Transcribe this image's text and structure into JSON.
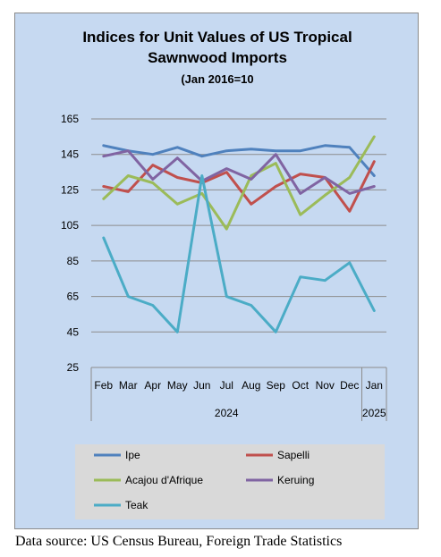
{
  "chart_data": {
    "type": "line",
    "title_line1": "Indices for Unit Values of US Tropical",
    "title_line2": "Sawnwood Imports",
    "subtitle": "(Jan 2016=10",
    "categories": [
      "Feb",
      "Mar",
      "Apr",
      "May",
      "Jun",
      "Jul",
      "Aug",
      "Sep",
      "Oct",
      "Nov",
      "Dec",
      "Jan"
    ],
    "year_labels": [
      "2024",
      "2025"
    ],
    "ylim": [
      25,
      165
    ],
    "yticks": [
      25,
      45,
      65,
      85,
      105,
      125,
      145,
      165
    ],
    "grid": true,
    "legend_position": "bottom",
    "series": [
      {
        "name": "Ipe",
        "color": "#4f81bd",
        "values": [
          150,
          147,
          145,
          149,
          144,
          147,
          148,
          147,
          147,
          150,
          149,
          133
        ]
      },
      {
        "name": "Sapelli",
        "color": "#c0504d",
        "values": [
          127,
          124,
          139,
          132,
          129,
          135,
          117,
          127,
          134,
          132,
          113,
          141
        ]
      },
      {
        "name": "Acajou d'Afrique",
        "color": "#9bbb59",
        "values": [
          120,
          133,
          129,
          117,
          123,
          103,
          133,
          140,
          111,
          122,
          132,
          155
        ]
      },
      {
        "name": "Keruing",
        "color": "#8064a2",
        "values": [
          144,
          147,
          131,
          143,
          130,
          137,
          131,
          145,
          123,
          132,
          123,
          127
        ]
      },
      {
        "name": "Teak",
        "color": "#4bacc6",
        "values": [
          98,
          65,
          60,
          45,
          133,
          65,
          60,
          45,
          76,
          74,
          84,
          57
        ]
      }
    ]
  },
  "source_note": "Data source: US Census Bureau, Foreign Trade Statistics"
}
